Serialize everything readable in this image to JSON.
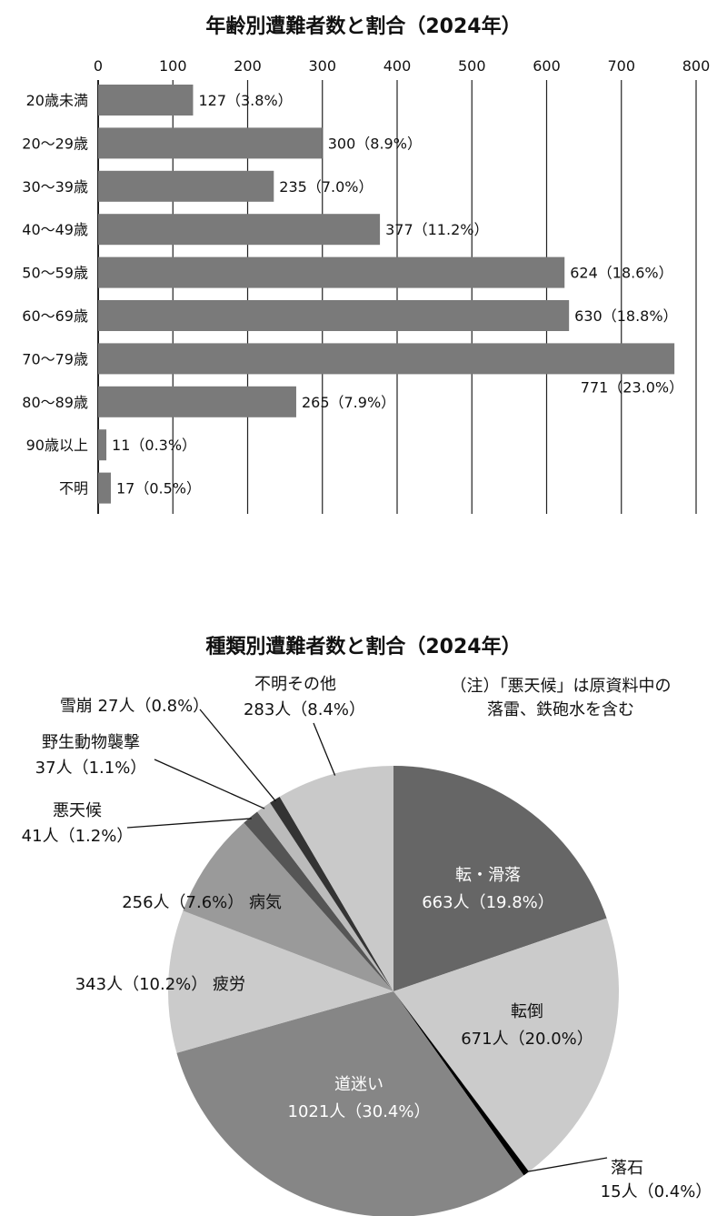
{
  "chart_data": [
    {
      "type": "bar",
      "orientation": "horizontal",
      "title": "年齢別遭難者数と割合（2024年）",
      "categories": [
        "20歳未満",
        "20～29歳",
        "30～39歳",
        "40～49歳",
        "50～59歳",
        "60～69歳",
        "70～79歳",
        "80～89歳",
        "90歳以上",
        "不明"
      ],
      "values": [
        127,
        300,
        235,
        377,
        624,
        630,
        771,
        265,
        11,
        17
      ],
      "data_labels": [
        "127（3.8%）",
        "300（8.9%）",
        "235（7.0%）",
        "377（11.2%）",
        "624（18.6%）",
        "630（18.8%）",
        "771（23.0%）",
        "265（7.9%）",
        "11（0.3%）",
        "17（0.5%）"
      ],
      "xlim": [
        0,
        800
      ],
      "xticks": [
        "0",
        "100",
        "200",
        "300",
        "400",
        "500",
        "600",
        "700",
        "800"
      ],
      "axis_position": "top",
      "grid": true,
      "bar_color": "#7a7a7a"
    },
    {
      "type": "pie",
      "title": "種類別遭難者数と割合（2024年）",
      "note": [
        "（注）「悪天候」は原資料中の",
        "落雷、鉄砲水を含む"
      ],
      "slices": [
        {
          "name": "転・滑落",
          "value": 663,
          "label": "663人（19.8%）",
          "color": "#666666"
        },
        {
          "name": "転倒",
          "value": 671,
          "label": "671人（20.0%）",
          "color": "#cbcbcb"
        },
        {
          "name": "落石",
          "value": 15,
          "label": "15人（0.4%）",
          "color": "#000000"
        },
        {
          "name": "道迷い",
          "value": 1021,
          "label": "1021人（30.4%）",
          "color": "#868686"
        },
        {
          "name": "疲労",
          "value": 343,
          "label": "343人（10.2%）",
          "color": "#cbcbcb"
        },
        {
          "name": "病気",
          "value": 256,
          "label": "256人（7.6%）",
          "color": "#9a9a9a"
        },
        {
          "name": "悪天候",
          "value": 41,
          "label": "41人（1.2%）",
          "color": "#555555"
        },
        {
          "name": "野生動物襲撃",
          "value": 37,
          "label": "37人（1.1%）",
          "color": "#bbbbbb"
        },
        {
          "name": "雪崩",
          "value": 27,
          "label": "27人（0.8%）",
          "color": "#333333"
        },
        {
          "name": "不明その他",
          "value": 283,
          "label": "283人（8.4%）",
          "color": "#c9c9c9"
        }
      ]
    }
  ]
}
